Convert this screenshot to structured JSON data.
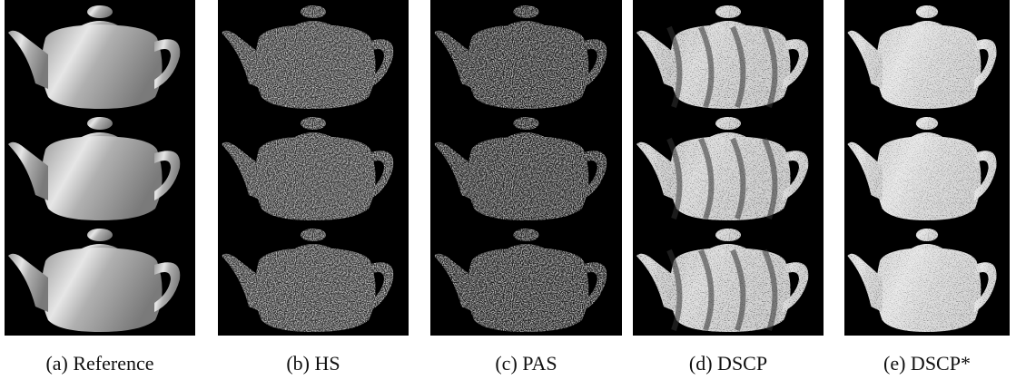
{
  "figure": {
    "panels": [
      {
        "caption": "(a) Reference"
      },
      {
        "caption": "(b) HS"
      },
      {
        "caption": "(c) PAS"
      },
      {
        "caption": "(d) DSCP"
      },
      {
        "caption": "(e) DSCP*"
      }
    ]
  }
}
